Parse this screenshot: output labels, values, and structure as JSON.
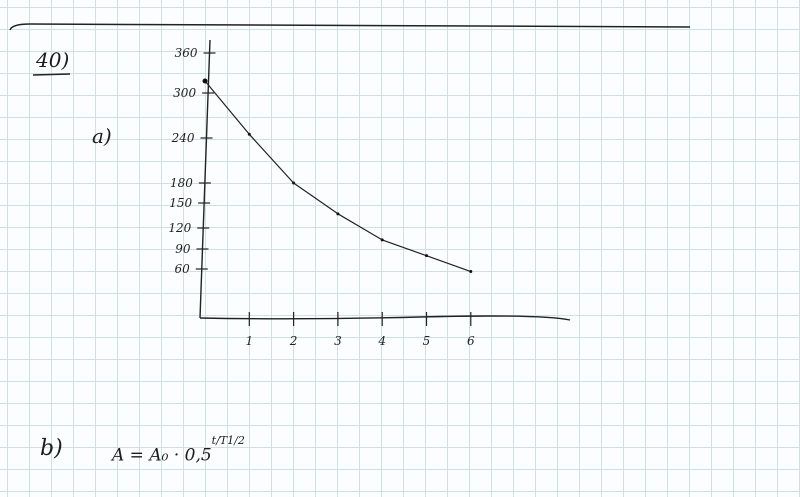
{
  "problem_number": "40)",
  "part_a_label": "a)",
  "part_b_label": "b)",
  "formula": {
    "main": "A = A₀ · 0,5",
    "exponent": "t/T1/2"
  },
  "chart_data": {
    "type": "line",
    "title": "",
    "xlabel": "",
    "ylabel": "",
    "x_ticks": [
      "1",
      "2",
      "3",
      "4",
      "5",
      "6"
    ],
    "x_tick_values": [
      1,
      2,
      3,
      4,
      5,
      6
    ],
    "y_ticks": [
      "60",
      "90",
      "120",
      "150",
      "180",
      "240",
      "300",
      "360"
    ],
    "y_tick_values": [
      60,
      90,
      120,
      150,
      180,
      240,
      300,
      360
    ],
    "xlim": [
      0,
      6.5
    ],
    "ylim": [
      0,
      360
    ],
    "grid": false,
    "x": [
      0,
      1,
      2,
      3,
      4,
      5,
      6
    ],
    "values": [
      318,
      245,
      180,
      137,
      103,
      80,
      57
    ],
    "line_color": "#222222"
  }
}
